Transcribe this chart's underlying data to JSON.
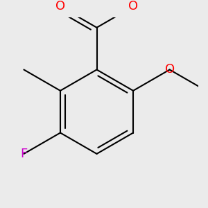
{
  "background_color": "#ebebeb",
  "bond_color": "#000000",
  "atom_colors": {
    "O": "#ff0000",
    "F": "#cc00cc",
    "C": "#000000"
  },
  "lw": 1.5,
  "font_size_O": 13,
  "font_size_F": 13,
  "figsize": [
    3.0,
    3.0
  ],
  "dpi": 100,
  "xlim": [
    -1.2,
    1.4
  ],
  "ylim": [
    -1.3,
    1.3
  ]
}
